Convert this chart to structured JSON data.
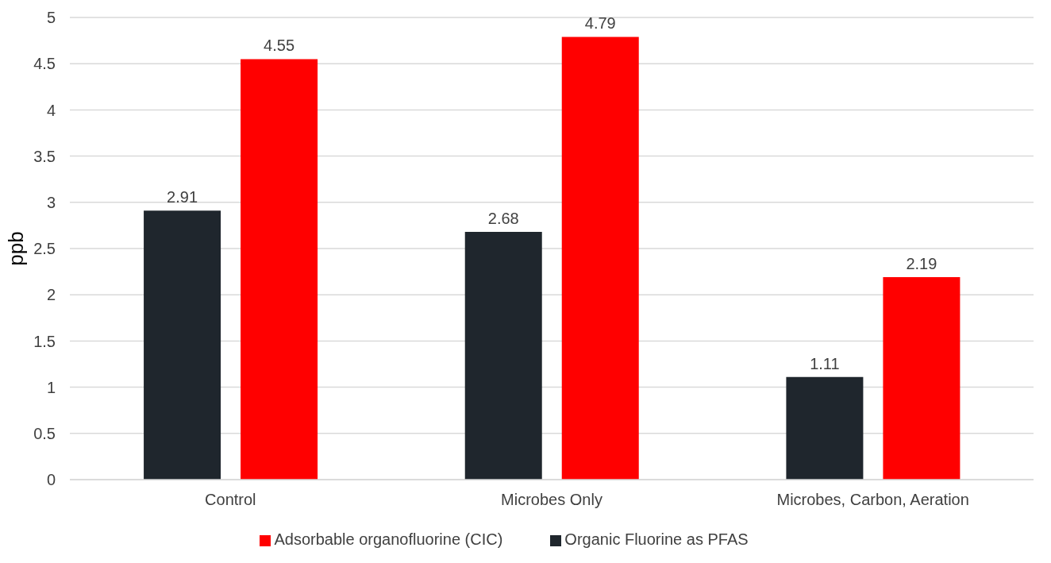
{
  "chart_data": {
    "type": "bar",
    "ylabel": "ppb",
    "categories": [
      "Control",
      "Microbes Only",
      "Microbes, Carbon, Aeration"
    ],
    "series": [
      {
        "name": "Organic Fluorine as PFAS",
        "color": "#1f262d",
        "values": [
          2.91,
          2.68,
          1.11
        ]
      },
      {
        "name": "Adsorbable organofluorine (CIC)",
        "color": "#ff0000",
        "values": [
          4.55,
          4.79,
          2.19
        ]
      }
    ],
    "ylim": [
      0,
      5
    ],
    "yticks": [
      0,
      0.5,
      1,
      1.5,
      2,
      2.5,
      3,
      3.5,
      4,
      4.5,
      5
    ],
    "grid": "y",
    "legend": "bottom",
    "data_labels": true
  }
}
